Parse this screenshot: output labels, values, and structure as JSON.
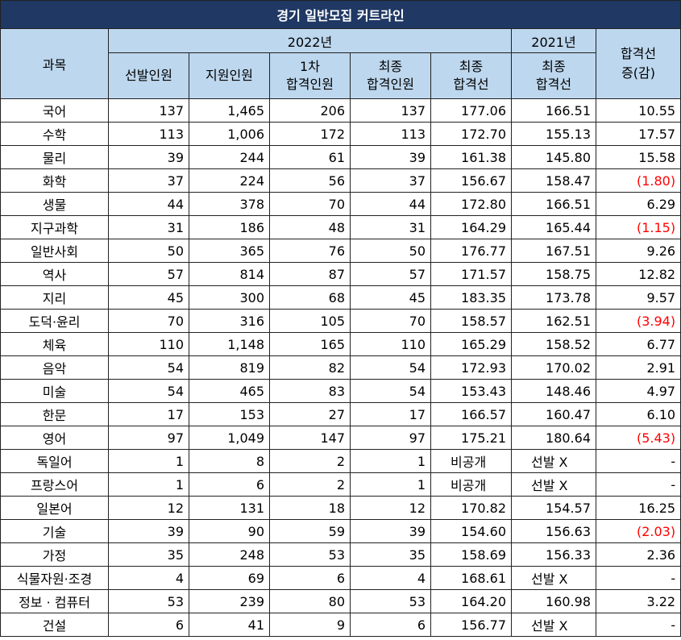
{
  "title": "경기 일반모집 커트라인",
  "header": {
    "subject": "과목",
    "year_2022": "2022년",
    "year_2021": "2021년",
    "change_line1": "합격선",
    "change_line2": "증(감)",
    "selected": "선발인원",
    "applicants": "지원인원",
    "first_pass_line1": "1차",
    "first_pass_line2": "합격인원",
    "final_pass_line1": "최종",
    "final_pass_line2": "합격인원",
    "final_cut_line1": "최종",
    "final_cut_line2": "합격선",
    "cut2021_line1": "최종",
    "cut2021_line2": "합격선"
  },
  "rows": [
    {
      "subject": "국어",
      "selected": "137",
      "applicants": "1,465",
      "first": "206",
      "final": "137",
      "cut2022": "177.06",
      "cut2021": "166.51",
      "change": "10.55",
      "neg": false
    },
    {
      "subject": "수학",
      "selected": "113",
      "applicants": "1,006",
      "first": "172",
      "final": "113",
      "cut2022": "172.70",
      "cut2021": "155.13",
      "change": "17.57",
      "neg": false
    },
    {
      "subject": "물리",
      "selected": "39",
      "applicants": "244",
      "first": "61",
      "final": "39",
      "cut2022": "161.38",
      "cut2021": "145.80",
      "change": "15.58",
      "neg": false
    },
    {
      "subject": "화학",
      "selected": "37",
      "applicants": "224",
      "first": "56",
      "final": "37",
      "cut2022": "156.67",
      "cut2021": "158.47",
      "change": "(1.80)",
      "neg": true
    },
    {
      "subject": "생물",
      "selected": "44",
      "applicants": "378",
      "first": "70",
      "final": "44",
      "cut2022": "172.80",
      "cut2021": "166.51",
      "change": "6.29",
      "neg": false
    },
    {
      "subject": "지구과학",
      "selected": "31",
      "applicants": "186",
      "first": "48",
      "final": "31",
      "cut2022": "164.29",
      "cut2021": "165.44",
      "change": "(1.15)",
      "neg": true
    },
    {
      "subject": "일반사회",
      "selected": "50",
      "applicants": "365",
      "first": "76",
      "final": "50",
      "cut2022": "176.77",
      "cut2021": "167.51",
      "change": "9.26",
      "neg": false
    },
    {
      "subject": "역사",
      "selected": "57",
      "applicants": "814",
      "first": "87",
      "final": "57",
      "cut2022": "171.57",
      "cut2021": "158.75",
      "change": "12.82",
      "neg": false
    },
    {
      "subject": "지리",
      "selected": "45",
      "applicants": "300",
      "first": "68",
      "final": "45",
      "cut2022": "183.35",
      "cut2021": "173.78",
      "change": "9.57",
      "neg": false
    },
    {
      "subject": "도덕·윤리",
      "selected": "70",
      "applicants": "316",
      "first": "105",
      "final": "70",
      "cut2022": "158.57",
      "cut2021": "162.51",
      "change": "(3.94)",
      "neg": true
    },
    {
      "subject": "체육",
      "selected": "110",
      "applicants": "1,148",
      "first": "165",
      "final": "110",
      "cut2022": "165.29",
      "cut2021": "158.52",
      "change": "6.77",
      "neg": false
    },
    {
      "subject": "음악",
      "selected": "54",
      "applicants": "819",
      "first": "82",
      "final": "54",
      "cut2022": "172.93",
      "cut2021": "170.02",
      "change": "2.91",
      "neg": false
    },
    {
      "subject": "미술",
      "selected": "54",
      "applicants": "465",
      "first": "83",
      "final": "54",
      "cut2022": "153.43",
      "cut2021": "148.46",
      "change": "4.97",
      "neg": false
    },
    {
      "subject": "한문",
      "selected": "17",
      "applicants": "153",
      "first": "27",
      "final": "17",
      "cut2022": "166.57",
      "cut2021": "160.47",
      "change": "6.10",
      "neg": false
    },
    {
      "subject": "영어",
      "selected": "97",
      "applicants": "1,049",
      "first": "147",
      "final": "97",
      "cut2022": "175.21",
      "cut2021": "180.64",
      "change": "(5.43)",
      "neg": true
    },
    {
      "subject": "독일어",
      "selected": "1",
      "applicants": "8",
      "first": "2",
      "final": "1",
      "cut2022": "비공개",
      "cut2021": "선발 X",
      "change": "-",
      "neg": false
    },
    {
      "subject": "프랑스어",
      "selected": "1",
      "applicants": "6",
      "first": "2",
      "final": "1",
      "cut2022": "비공개",
      "cut2021": "선발 X",
      "change": "-",
      "neg": false
    },
    {
      "subject": "일본어",
      "selected": "12",
      "applicants": "131",
      "first": "18",
      "final": "12",
      "cut2022": "170.82",
      "cut2021": "154.57",
      "change": "16.25",
      "neg": false
    },
    {
      "subject": "기술",
      "selected": "39",
      "applicants": "90",
      "first": "59",
      "final": "39",
      "cut2022": "154.60",
      "cut2021": "156.63",
      "change": "(2.03)",
      "neg": true
    },
    {
      "subject": "가정",
      "selected": "35",
      "applicants": "248",
      "first": "53",
      "final": "35",
      "cut2022": "158.69",
      "cut2021": "156.33",
      "change": "2.36",
      "neg": false
    },
    {
      "subject": "식물자원·조경",
      "selected": "4",
      "applicants": "69",
      "first": "6",
      "final": "4",
      "cut2022": "168.61",
      "cut2021": "선발 X",
      "change": "-",
      "neg": false
    },
    {
      "subject": "정보 · 컴퓨터",
      "selected": "53",
      "applicants": "239",
      "first": "80",
      "final": "53",
      "cut2022": "164.20",
      "cut2021": "160.98",
      "change": "3.22",
      "neg": false
    },
    {
      "subject": "건설",
      "selected": "6",
      "applicants": "41",
      "first": "9",
      "final": "6",
      "cut2022": "156.77",
      "cut2021": "선발 X",
      "change": "-",
      "neg": false
    }
  ]
}
